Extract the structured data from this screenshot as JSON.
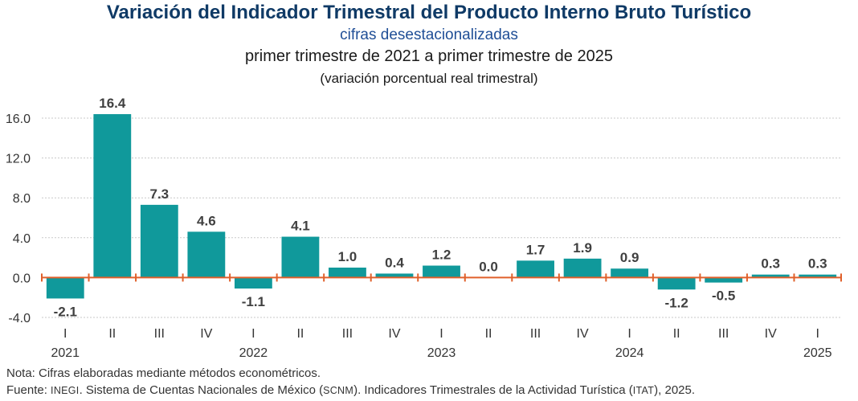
{
  "title": "Variación del Indicador Trimestral del Producto Interno Bruto Turístico",
  "subtitle": "cifras desestacionalizadas",
  "period": "primer trimestre de 2021 a primer trimestre de 2025",
  "units": "(variación porcentual real trimestral)",
  "note": "Nota: Cifras elaboradas mediante métodos econométricos.",
  "source": {
    "part1": "Fuente: ",
    "inegi": "INEGI",
    "part2": ". Sistema de Cuentas Nacionales de México (",
    "scnm": "SCNM",
    "part3": "). Indicadores Trimestrales de la Actividad Turística (",
    "itat": "ITAT",
    "part4": "), 2025."
  },
  "colors": {
    "bar": "#10999b",
    "axis": "#e0602b",
    "title": "#0f3a66",
    "subtitle": "#1f4e96"
  },
  "chart_data": {
    "type": "bar",
    "categories": [
      "I",
      "II",
      "III",
      "IV",
      "I",
      "II",
      "III",
      "IV",
      "I",
      "II",
      "III",
      "IV",
      "I",
      "II",
      "III",
      "IV",
      "I"
    ],
    "years": [
      {
        "label": "2021",
        "index": 0
      },
      {
        "label": "2022",
        "index": 4
      },
      {
        "label": "2023",
        "index": 8
      },
      {
        "label": "2024",
        "index": 12
      },
      {
        "label": "2025",
        "index": 16
      }
    ],
    "values": [
      -2.1,
      16.4,
      7.3,
      4.6,
      -1.1,
      4.1,
      1.0,
      0.4,
      1.2,
      0.0,
      1.7,
      1.9,
      0.9,
      -1.2,
      -0.5,
      0.3,
      0.3
    ],
    "value_labels": [
      "-2.1",
      "16.4",
      "7.3",
      "4.6",
      "-1.1",
      "4.1",
      "1.0",
      "0.4",
      "1.2",
      "0.0",
      "1.7",
      "1.9",
      "0.9",
      "-1.2",
      "-0.5",
      "0.3",
      "0.3"
    ],
    "yticks": [
      16.0,
      12.0,
      8.0,
      4.0,
      0.0,
      -4.0
    ],
    "ytick_labels": [
      "16.0",
      "12.0",
      "8.0",
      "4.0",
      "0.0",
      "-4.0"
    ],
    "ylim": [
      -4.0,
      16.0
    ],
    "grid": true
  }
}
